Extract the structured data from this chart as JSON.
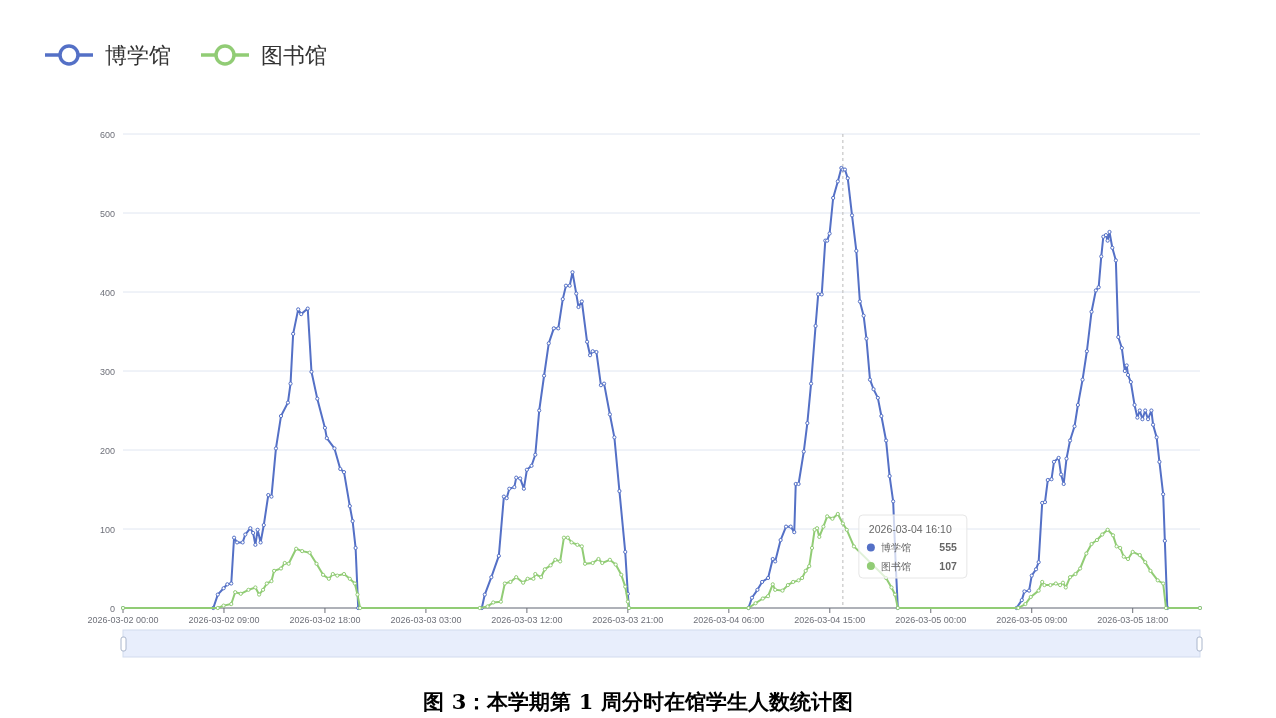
{
  "chart_data": {
    "type": "line",
    "title": "图 3：本学期第 1 周分时在馆学生人数统计图",
    "xlim": [
      "2026-03-02T00:00",
      "2026-03-06T00:00"
    ],
    "xticks": [
      {
        "value": "2026-03-02T00:00",
        "label": "2026-03-02 00:00"
      },
      {
        "value": "2026-03-02T09:00",
        "label": "2026-03-02 09:00"
      },
      {
        "value": "2026-03-02T18:00",
        "label": "2026-03-02 18:00"
      },
      {
        "value": "2026-03-03T03:00",
        "label": "2026-03-03 03:00"
      },
      {
        "value": "2026-03-03T12:00",
        "label": "2026-03-03 12:00"
      },
      {
        "value": "2026-03-03T21:00",
        "label": "2026-03-03 21:00"
      },
      {
        "value": "2026-03-04T06:00",
        "label": "2026-03-04 06:00"
      },
      {
        "value": "2026-03-04T15:00",
        "label": "2026-03-04 15:00"
      },
      {
        "value": "2026-03-05T00:00",
        "label": "2026-03-05 00:00"
      },
      {
        "value": "2026-03-05T09:00",
        "label": "2026-03-05 09:00"
      },
      {
        "value": "2026-03-05T18:00",
        "label": "2026-03-05 18:00"
      }
    ],
    "ylim": [
      0,
      600
    ],
    "yticks": [
      0,
      100,
      200,
      300,
      400,
      500,
      600
    ],
    "grid": "y",
    "legend": "top left",
    "marker": "circle",
    "line_style": "solid",
    "annotations": [
      "2026-03-04 16:10",
      "博学馆",
      "555",
      "图书馆",
      "107"
    ],
    "ref_lines": [
      {
        "axis": "x",
        "value": "2026-03-04T16:10",
        "color": "#bbbbbb",
        "line_style": "dashed"
      }
    ],
    "series": [
      {
        "name": "博学馆",
        "color": "#5470c6",
        "x": [
          "2026-03-02T00:00",
          "2026-03-02T08:03",
          "2026-03-02T08:27",
          "2026-03-02T08:58",
          "2026-03-02T09:18",
          "2026-03-02T09:39",
          "2026-03-02T09:54",
          "2026-03-02T10:10",
          "2026-03-02T10:40",
          "2026-03-02T10:54",
          "2026-03-02T11:21",
          "2026-03-02T11:36",
          "2026-03-02T11:48",
          "2026-03-02T12:00",
          "2026-03-02T12:16",
          "2026-03-02T12:33",
          "2026-03-02T12:57",
          "2026-03-02T13:14",
          "2026-03-02T13:38",
          "2026-03-02T14:05",
          "2026-03-02T14:42",
          "2026-03-02T14:56",
          "2026-03-02T15:10",
          "2026-03-02T15:37",
          "2026-03-02T15:53",
          "2026-03-02T16:28",
          "2026-03-02T16:48",
          "2026-03-02T17:19",
          "2026-03-02T18:00",
          "2026-03-02T18:10",
          "2026-03-02T18:51",
          "2026-03-02T19:22",
          "2026-03-02T19:42",
          "2026-03-02T20:13",
          "2026-03-02T20:28",
          "2026-03-02T20:44",
          "2026-03-02T20:58",
          "2026-03-03T07:59",
          "2026-03-03T08:15",
          "2026-03-03T08:50",
          "2026-03-03T09:30",
          "2026-03-03T09:57",
          "2026-03-03T10:12",
          "2026-03-03T10:26",
          "2026-03-03T10:53",
          "2026-03-03T11:03",
          "2026-03-03T11:24",
          "2026-03-03T11:44",
          "2026-03-03T12:00",
          "2026-03-03T12:25",
          "2026-03-03T12:45",
          "2026-03-03T13:06",
          "2026-03-03T13:32",
          "2026-03-03T13:57",
          "2026-03-03T14:24",
          "2026-03-03T14:48",
          "2026-03-03T15:12",
          "2026-03-03T15:29",
          "2026-03-03T15:49",
          "2026-03-03T16:04",
          "2026-03-03T16:24",
          "2026-03-03T16:36",
          "2026-03-03T16:54",
          "2026-03-03T17:22",
          "2026-03-03T17:38",
          "2026-03-03T17:52",
          "2026-03-03T18:12",
          "2026-03-03T18:36",
          "2026-03-03T18:53",
          "2026-03-03T19:24",
          "2026-03-03T19:48",
          "2026-03-03T20:15",
          "2026-03-03T20:46",
          "2026-03-03T21:00",
          "2026-03-03T21:06",
          "2026-03-04T07:45",
          "2026-03-04T08:04",
          "2026-03-04T08:33",
          "2026-03-04T08:58",
          "2026-03-04T09:30",
          "2026-03-04T09:55",
          "2026-03-04T10:08",
          "2026-03-04T10:37",
          "2026-03-04T11:06",
          "2026-03-04T11:31",
          "2026-03-04T11:50",
          "2026-03-04T11:58",
          "2026-03-04T12:13",
          "2026-03-04T12:41",
          "2026-03-04T13:00",
          "2026-03-04T13:20",
          "2026-03-04T13:44",
          "2026-03-04T13:58",
          "2026-03-04T14:17",
          "2026-03-04T14:36",
          "2026-03-04T14:46",
          "2026-03-04T14:59",
          "2026-03-04T15:18",
          "2026-03-04T15:43",
          "2026-03-04T16:02",
          "2026-03-04T16:10",
          "2026-03-04T16:21",
          "2026-03-04T16:36",
          "2026-03-04T16:59",
          "2026-03-04T17:22",
          "2026-03-04T17:41",
          "2026-03-04T18:01",
          "2026-03-04T18:16",
          "2026-03-04T18:35",
          "2026-03-04T18:54",
          "2026-03-04T19:17",
          "2026-03-04T19:36",
          "2026-03-04T20:01",
          "2026-03-04T20:20",
          "2026-03-04T20:39",
          "2026-03-04T20:53",
          "2026-03-04T21:04",
          "2026-03-05T07:39",
          "2026-03-05T08:07",
          "2026-03-05T08:21",
          "2026-03-05T08:46",
          "2026-03-05T09:00",
          "2026-03-05T09:23",
          "2026-03-05T09:37",
          "2026-03-05T09:56",
          "2026-03-05T10:11",
          "2026-03-05T10:26",
          "2026-03-05T10:46",
          "2026-03-05T10:59",
          "2026-03-05T11:24",
          "2026-03-05T11:37",
          "2026-03-05T11:51",
          "2026-03-05T12:06",
          "2026-03-05T12:25",
          "2026-03-05T12:49",
          "2026-03-05T13:07",
          "2026-03-05T13:32",
          "2026-03-05T13:55",
          "2026-03-05T14:20",
          "2026-03-05T14:43",
          "2026-03-05T14:58",
          "2026-03-05T15:12",
          "2026-03-05T15:23",
          "2026-03-05T15:37",
          "2026-03-05T15:46",
          "2026-03-05T15:56",
          "2026-03-05T16:11",
          "2026-03-05T16:30",
          "2026-03-05T16:43",
          "2026-03-05T17:02",
          "2026-03-05T17:18",
          "2026-03-05T17:28",
          "2026-03-05T17:35",
          "2026-03-05T17:50",
          "2026-03-05T18:10",
          "2026-03-05T18:25",
          "2026-03-05T18:38",
          "2026-03-05T18:52",
          "2026-03-05T19:07",
          "2026-03-05T19:22",
          "2026-03-05T19:40",
          "2026-03-05T19:49",
          "2026-03-05T20:08",
          "2026-03-05T20:23",
          "2026-03-05T20:43",
          "2026-03-05T20:52",
          "2026-03-05T21:05",
          "2026-03-06T00:00"
        ],
        "values": [
          0,
          0,
          17,
          25,
          30,
          31,
          89,
          83,
          83,
          93,
          101,
          95,
          80,
          99,
          83,
          105,
          143,
          141,
          202,
          243,
          260,
          284,
          347,
          378,
          372,
          379,
          299,
          265,
          228,
          215,
          202,
          176,
          172,
          129,
          110,
          76,
          0,
          0,
          17,
          39,
          66,
          141,
          139,
          151,
          153,
          165,
          164,
          151,
          175,
          180,
          194,
          250,
          294,
          335,
          354,
          354,
          391,
          408,
          408,
          425,
          398,
          381,
          388,
          337,
          320,
          325,
          324,
          282,
          284,
          245,
          216,
          148,
          71,
          18,
          0,
          0,
          13,
          23,
          33,
          38,
          62,
          59,
          86,
          103,
          103,
          96,
          157,
          157,
          198,
          234,
          284,
          357,
          397,
          397,
          465,
          465,
          474,
          519,
          540,
          557,
          555,
          555,
          544,
          497,
          452,
          388,
          370,
          341,
          289,
          277,
          266,
          243,
          212,
          167,
          135,
          53,
          0,
          0,
          10,
          21,
          22,
          41,
          49,
          58,
          133,
          134,
          162,
          163,
          185,
          190,
          169,
          157,
          189,
          212,
          230,
          257,
          289,
          325,
          375,
          402,
          406,
          445,
          470,
          472,
          465,
          476,
          456,
          440,
          343,
          329,
          300,
          307,
          295,
          286,
          257,
          241,
          250,
          239,
          250,
          239,
          250,
          232,
          216,
          185,
          144,
          85,
          0,
          0
        ]
      },
      {
        "name": "图书馆",
        "color": "#91cc75",
        "x": [
          "2026-03-02T00:00",
          "2026-03-02T08:27",
          "2026-03-02T08:58",
          "2026-03-02T09:39",
          "2026-03-02T10:00",
          "2026-03-02T10:30",
          "2026-03-02T11:11",
          "2026-03-02T11:48",
          "2026-03-02T12:08",
          "2026-03-02T12:29",
          "2026-03-02T12:49",
          "2026-03-02T13:14",
          "2026-03-02T13:28",
          "2026-03-02T14:05",
          "2026-03-02T14:25",
          "2026-03-02T14:46",
          "2026-03-02T15:26",
          "2026-03-02T15:58",
          "2026-03-02T16:38",
          "2026-03-02T17:15",
          "2026-03-02T17:50",
          "2026-03-02T18:21",
          "2026-03-02T18:42",
          "2026-03-02T19:06",
          "2026-03-02T19:42",
          "2026-03-02T20:13",
          "2026-03-02T20:40",
          "2026-03-02T20:54",
          "2026-03-02T21:08",
          "2026-03-03T07:48",
          "2026-03-03T08:30",
          "2026-03-03T09:00",
          "2026-03-03T09:41",
          "2026-03-03T10:02",
          "2026-03-03T10:32",
          "2026-03-03T11:03",
          "2026-03-03T11:40",
          "2026-03-03T12:04",
          "2026-03-03T12:35",
          "2026-03-03T12:45",
          "2026-03-03T13:16",
          "2026-03-03T13:36",
          "2026-03-03T14:07",
          "2026-03-03T14:32",
          "2026-03-03T14:58",
          "2026-03-03T15:18",
          "2026-03-03T15:39",
          "2026-03-03T15:59",
          "2026-03-03T16:30",
          "2026-03-03T16:54",
          "2026-03-03T17:11",
          "2026-03-03T17:52",
          "2026-03-03T18:23",
          "2026-03-03T18:43",
          "2026-03-03T19:24",
          "2026-03-03T19:55",
          "2026-03-03T20:25",
          "2026-03-03T20:46",
          "2026-03-03T21:00",
          "2026-03-03T21:06",
          "2026-03-04T07:45",
          "2026-03-04T08:23",
          "2026-03-04T09:02",
          "2026-03-04T09:30",
          "2026-03-04T09:55",
          "2026-03-04T10:08",
          "2026-03-04T10:47",
          "2026-03-04T11:16",
          "2026-03-04T11:44",
          "2026-03-04T12:13",
          "2026-03-04T12:32",
          "2026-03-04T12:51",
          "2026-03-04T13:10",
          "2026-03-04T13:25",
          "2026-03-04T13:39",
          "2026-03-04T13:52",
          "2026-03-04T14:04",
          "2026-03-04T14:26",
          "2026-03-04T14:46",
          "2026-03-04T15:14",
          "2026-03-04T15:43",
          "2026-03-04T16:10",
          "2026-03-04T16:31",
          "2026-03-04T17:09",
          "2026-03-04T20:01",
          "2026-03-04T20:30",
          "2026-03-04T20:49",
          "2026-03-04T21:04",
          "2026-03-05T07:48",
          "2026-03-05T08:26",
          "2026-03-05T08:55",
          "2026-03-05T09:37",
          "2026-03-05T09:56",
          "2026-03-05T10:08",
          "2026-03-05T10:40",
          "2026-03-05T11:09",
          "2026-03-05T11:32",
          "2026-03-05T11:47",
          "2026-03-05T12:02",
          "2026-03-05T12:25",
          "2026-03-05T12:54",
          "2026-03-05T13:19",
          "2026-03-05T13:52",
          "2026-03-05T14:20",
          "2026-03-05T14:49",
          "2026-03-05T15:17",
          "2026-03-05T15:46",
          "2026-03-05T16:15",
          "2026-03-05T16:34",
          "2026-03-05T16:53",
          "2026-03-05T17:12",
          "2026-03-05T17:35",
          "2026-03-05T18:00",
          "2026-03-05T18:38",
          "2026-03-05T19:07",
          "2026-03-05T19:35",
          "2026-03-05T20:14",
          "2026-03-05T20:43",
          "2026-03-05T20:58",
          "2026-03-06T00:00"
        ],
        "values": [
          0,
          0,
          3,
          5,
          20,
          18,
          23,
          26,
          17,
          23,
          31,
          34,
          47,
          50,
          57,
          56,
          75,
          72,
          70,
          56,
          42,
          37,
          43,
          41,
          43,
          37,
          31,
          17,
          0,
          0,
          2,
          7,
          8,
          31,
          33,
          39,
          32,
          37,
          37,
          43,
          39,
          49,
          54,
          61,
          59,
          89,
          89,
          83,
          80,
          78,
          56,
          57,
          62,
          57,
          61,
          55,
          42,
          27,
          8,
          0,
          0,
          6,
          12,
          15,
          30,
          23,
          22,
          29,
          33,
          35,
          38,
          47,
          53,
          76,
          99,
          101,
          90,
          103,
          116,
          113,
          119,
          107,
          99,
          78,
          38,
          26,
          17,
          0,
          0,
          5,
          14,
          22,
          33,
          29,
          29,
          31,
          29,
          32,
          26,
          39,
          43,
          50,
          69,
          81,
          86,
          93,
          99,
          92,
          78,
          76,
          65,
          62,
          71,
          67,
          58,
          47,
          35,
          31,
          0,
          0
        ]
      }
    ]
  }
}
